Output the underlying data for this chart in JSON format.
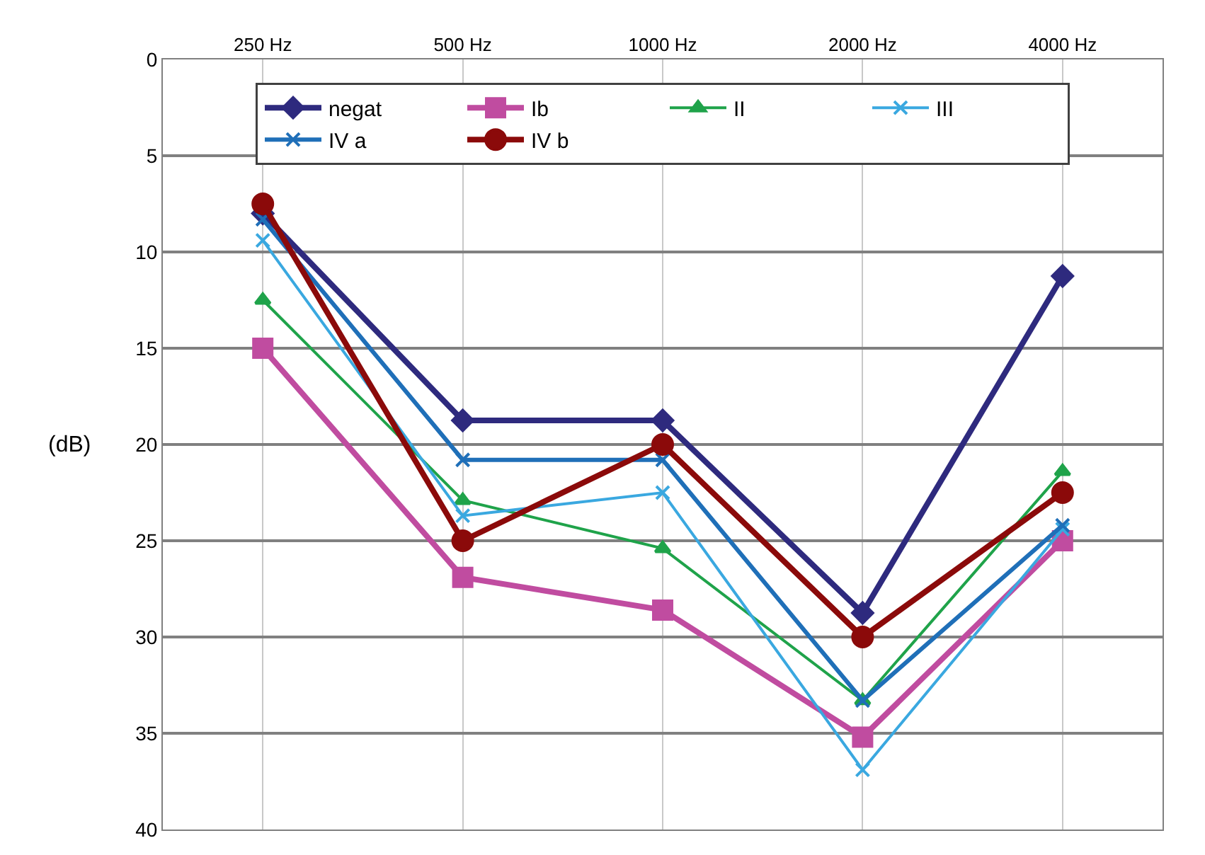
{
  "chart_data": {
    "type": "line",
    "ylabel": "(dB)",
    "categories": [
      "250 Hz",
      "500 Hz",
      "1000 Hz",
      "2000 Hz",
      "4000 Hz"
    ],
    "series": [
      {
        "name": "negat",
        "color": "#2e2a7e",
        "marker": "diamond",
        "values": [
          8,
          18.75,
          18.75,
          28.75,
          11.25
        ]
      },
      {
        "name": "Ib",
        "color": "#c04ca0",
        "marker": "square",
        "values": [
          15,
          26.9,
          28.6,
          35.2,
          25
        ]
      },
      {
        "name": "II",
        "color": "#1fa34a",
        "marker": "triangle",
        "values": [
          12.5,
          22.9,
          25.4,
          33.3,
          21.4
        ]
      },
      {
        "name": "III",
        "color": "#3aa8e0",
        "marker": "cross",
        "values": [
          9.4,
          23.7,
          22.5,
          36.9,
          24.4
        ]
      },
      {
        "name": "IV a",
        "color": "#1f6fb8",
        "marker": "cross",
        "values": [
          8.3,
          20.8,
          20.8,
          33.3,
          24.2
        ]
      },
      {
        "name": "IV b",
        "color": "#8b0a0a",
        "marker": "circle",
        "values": [
          7.5,
          25,
          20,
          30,
          22.5
        ]
      }
    ],
    "ylim": [
      40,
      0
    ],
    "yticks": [
      0,
      5,
      10,
      15,
      20,
      25,
      30,
      35,
      40
    ],
    "grid": true,
    "legend": "top",
    "line_style": "solid"
  }
}
